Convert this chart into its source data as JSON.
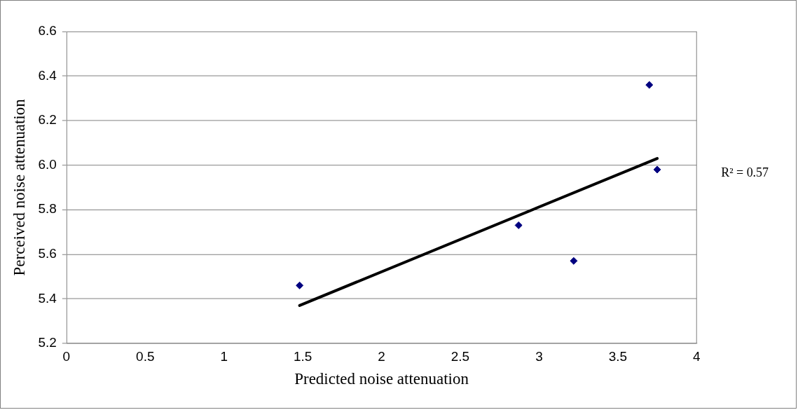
{
  "chart_data": {
    "type": "scatter",
    "xlabel": "Predicted noise attenuation",
    "ylabel": "Perceived noise attenuation",
    "series": [
      {
        "color": "#000080",
        "x": [
          1.48,
          2.87,
          3.22,
          3.7,
          3.75
        ],
        "values": [
          5.46,
          5.73,
          5.57,
          6.36,
          5.98
        ],
        "marker": "diamond"
      },
      {
        "type": "line",
        "color": "#000000",
        "x": [
          1.48,
          3.75
        ],
        "values": [
          5.37,
          6.03
        ],
        "marker": "none"
      }
    ],
    "xlim": [
      0,
      4
    ],
    "xticks": [
      0,
      0.5,
      1,
      1.5,
      2,
      2.5,
      3,
      3.5,
      4
    ],
    "ylim": [
      5.2,
      6.6
    ],
    "yticks": [
      {
        "value": 5.2,
        "label": "5.2"
      },
      {
        "value": 5.4,
        "label": "5.4"
      },
      {
        "value": 5.6,
        "label": "5.6"
      },
      {
        "value": 5.8,
        "label": "5.8"
      },
      {
        "value": 6,
        "label": "6.0"
      },
      {
        "value": 6.2,
        "label": "6.2"
      },
      {
        "value": 6.4,
        "label": "6.4"
      },
      {
        "value": 6.6,
        "label": "6.6"
      }
    ],
    "grid": "y",
    "legend": false,
    "annotations": [
      "R² = 0.57"
    ]
  }
}
